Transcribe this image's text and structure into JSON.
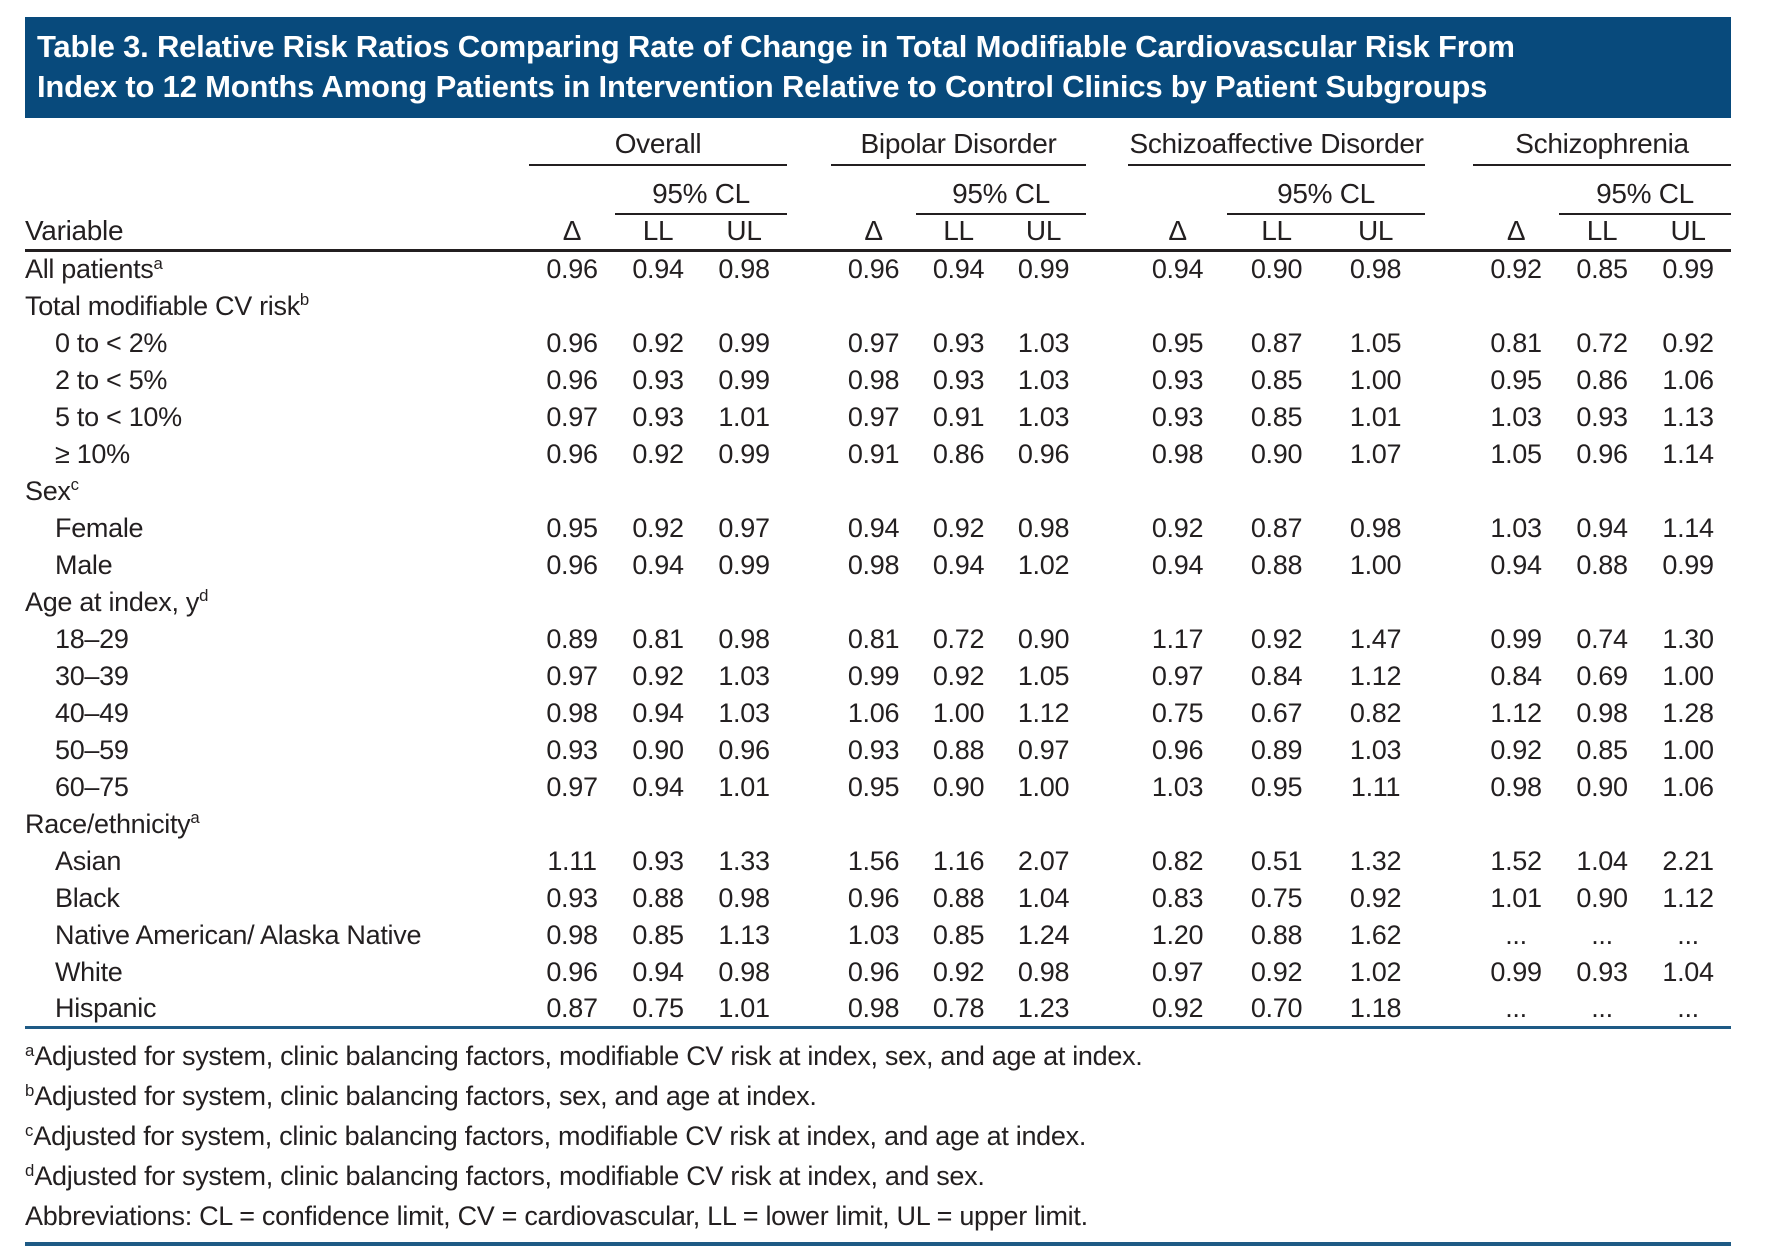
{
  "title_line1": "Table 3. Relative Risk Ratios Comparing Rate of Change in Total Modifiable Cardiovascular Risk From",
  "title_line2": "Index to 12 Months Among Patients in Intervention Relative to Control Clinics by Patient Subgroups",
  "colors": {
    "banner_blue": "#084a7c",
    "rule_dark": "#231f20",
    "rule_blue": "#1e5a85"
  },
  "table": {
    "variable_header": "Variable",
    "ci_label": "95% CL",
    "col_headers": [
      "Δ",
      "LL",
      "UL"
    ],
    "groups": [
      {
        "label": "Overall"
      },
      {
        "label": "Bipolar Disorder"
      },
      {
        "label": "Schizoaffective Disorder"
      },
      {
        "label": "Schizophrenia"
      }
    ],
    "rows": [
      {
        "label": "All patients",
        "sup": "a",
        "indent": false,
        "section": false,
        "values": [
          "0.96",
          "0.94",
          "0.98",
          "0.96",
          "0.94",
          "0.99",
          "0.94",
          "0.90",
          "0.98",
          "0.92",
          "0.85",
          "0.99"
        ]
      },
      {
        "label": "Total modifiable CV risk",
        "sup": "b",
        "indent": false,
        "section": true
      },
      {
        "label": "0 to < 2%",
        "indent": true,
        "section": false,
        "values": [
          "0.96",
          "0.92",
          "0.99",
          "0.97",
          "0.93",
          "1.03",
          "0.95",
          "0.87",
          "1.05",
          "0.81",
          "0.72",
          "0.92"
        ]
      },
      {
        "label": "2 to < 5%",
        "indent": true,
        "section": false,
        "values": [
          "0.96",
          "0.93",
          "0.99",
          "0.98",
          "0.93",
          "1.03",
          "0.93",
          "0.85",
          "1.00",
          "0.95",
          "0.86",
          "1.06"
        ]
      },
      {
        "label": "5 to < 10%",
        "indent": true,
        "section": false,
        "values": [
          "0.97",
          "0.93",
          "1.01",
          "0.97",
          "0.91",
          "1.03",
          "0.93",
          "0.85",
          "1.01",
          "1.03",
          "0.93",
          "1.13"
        ]
      },
      {
        "label": "≥ 10%",
        "indent": true,
        "section": false,
        "values": [
          "0.96",
          "0.92",
          "0.99",
          "0.91",
          "0.86",
          "0.96",
          "0.98",
          "0.90",
          "1.07",
          "1.05",
          "0.96",
          "1.14"
        ]
      },
      {
        "label": "Sex",
        "sup": "c",
        "indent": false,
        "section": true
      },
      {
        "label": "Female",
        "indent": true,
        "section": false,
        "values": [
          "0.95",
          "0.92",
          "0.97",
          "0.94",
          "0.92",
          "0.98",
          "0.92",
          "0.87",
          "0.98",
          "1.03",
          "0.94",
          "1.14"
        ]
      },
      {
        "label": "Male",
        "indent": true,
        "section": false,
        "values": [
          "0.96",
          "0.94",
          "0.99",
          "0.98",
          "0.94",
          "1.02",
          "0.94",
          "0.88",
          "1.00",
          "0.94",
          "0.88",
          "0.99"
        ]
      },
      {
        "label": "Age at index, y",
        "sup": "d",
        "indent": false,
        "section": true
      },
      {
        "label": "18–29",
        "indent": true,
        "section": false,
        "values": [
          "0.89",
          "0.81",
          "0.98",
          "0.81",
          "0.72",
          "0.90",
          "1.17",
          "0.92",
          "1.47",
          "0.99",
          "0.74",
          "1.30"
        ]
      },
      {
        "label": "30–39",
        "indent": true,
        "section": false,
        "values": [
          "0.97",
          "0.92",
          "1.03",
          "0.99",
          "0.92",
          "1.05",
          "0.97",
          "0.84",
          "1.12",
          "0.84",
          "0.69",
          "1.00"
        ]
      },
      {
        "label": "40–49",
        "indent": true,
        "section": false,
        "values": [
          "0.98",
          "0.94",
          "1.03",
          "1.06",
          "1.00",
          "1.12",
          "0.75",
          "0.67",
          "0.82",
          "1.12",
          "0.98",
          "1.28"
        ]
      },
      {
        "label": "50–59",
        "indent": true,
        "section": false,
        "values": [
          "0.93",
          "0.90",
          "0.96",
          "0.93",
          "0.88",
          "0.97",
          "0.96",
          "0.89",
          "1.03",
          "0.92",
          "0.85",
          "1.00"
        ]
      },
      {
        "label": "60–75",
        "indent": true,
        "section": false,
        "values": [
          "0.97",
          "0.94",
          "1.01",
          "0.95",
          "0.90",
          "1.00",
          "1.03",
          "0.95",
          "1.11",
          "0.98",
          "0.90",
          "1.06"
        ]
      },
      {
        "label": "Race/ethnicity",
        "sup": "a",
        "indent": false,
        "section": true
      },
      {
        "label": "Asian",
        "indent": true,
        "section": false,
        "values": [
          "1.11",
          "0.93",
          "1.33",
          "1.56",
          "1.16",
          "2.07",
          "0.82",
          "0.51",
          "1.32",
          "1.52",
          "1.04",
          "2.21"
        ]
      },
      {
        "label": "Black",
        "indent": true,
        "section": false,
        "values": [
          "0.93",
          "0.88",
          "0.98",
          "0.96",
          "0.88",
          "1.04",
          "0.83",
          "0.75",
          "0.92",
          "1.01",
          "0.90",
          "1.12"
        ]
      },
      {
        "label": "Native American/ Alaska Native",
        "indent": true,
        "section": false,
        "values": [
          "0.98",
          "0.85",
          "1.13",
          "1.03",
          "0.85",
          "1.24",
          "1.20",
          "0.88",
          "1.62",
          "...",
          "...",
          "..."
        ]
      },
      {
        "label": "White",
        "indent": true,
        "section": false,
        "values": [
          "0.96",
          "0.94",
          "0.98",
          "0.96",
          "0.92",
          "0.98",
          "0.97",
          "0.92",
          "1.02",
          "0.99",
          "0.93",
          "1.04"
        ]
      },
      {
        "label": "Hispanic",
        "indent": true,
        "section": false,
        "values": [
          "0.87",
          "0.75",
          "1.01",
          "0.98",
          "0.78",
          "1.23",
          "0.92",
          "0.70",
          "1.18",
          "...",
          "...",
          "..."
        ]
      }
    ]
  },
  "footnotes": [
    {
      "sup": "a",
      "text": "Adjusted for system, clinic balancing factors, modifiable CV risk at index, sex, and age at index."
    },
    {
      "sup": "b",
      "text": "Adjusted for system, clinic balancing factors, sex, and age at index."
    },
    {
      "sup": "c",
      "text": "Adjusted for system, clinic balancing factors, modifiable CV risk at index, and age at index."
    },
    {
      "sup": "d",
      "text": "Adjusted for system, clinic balancing factors, modifiable CV risk at index, and sex."
    },
    {
      "sup": "",
      "text": "Abbreviations: CL = confidence limit, CV = cardiovascular, LL = lower limit, UL = upper limit."
    }
  ]
}
